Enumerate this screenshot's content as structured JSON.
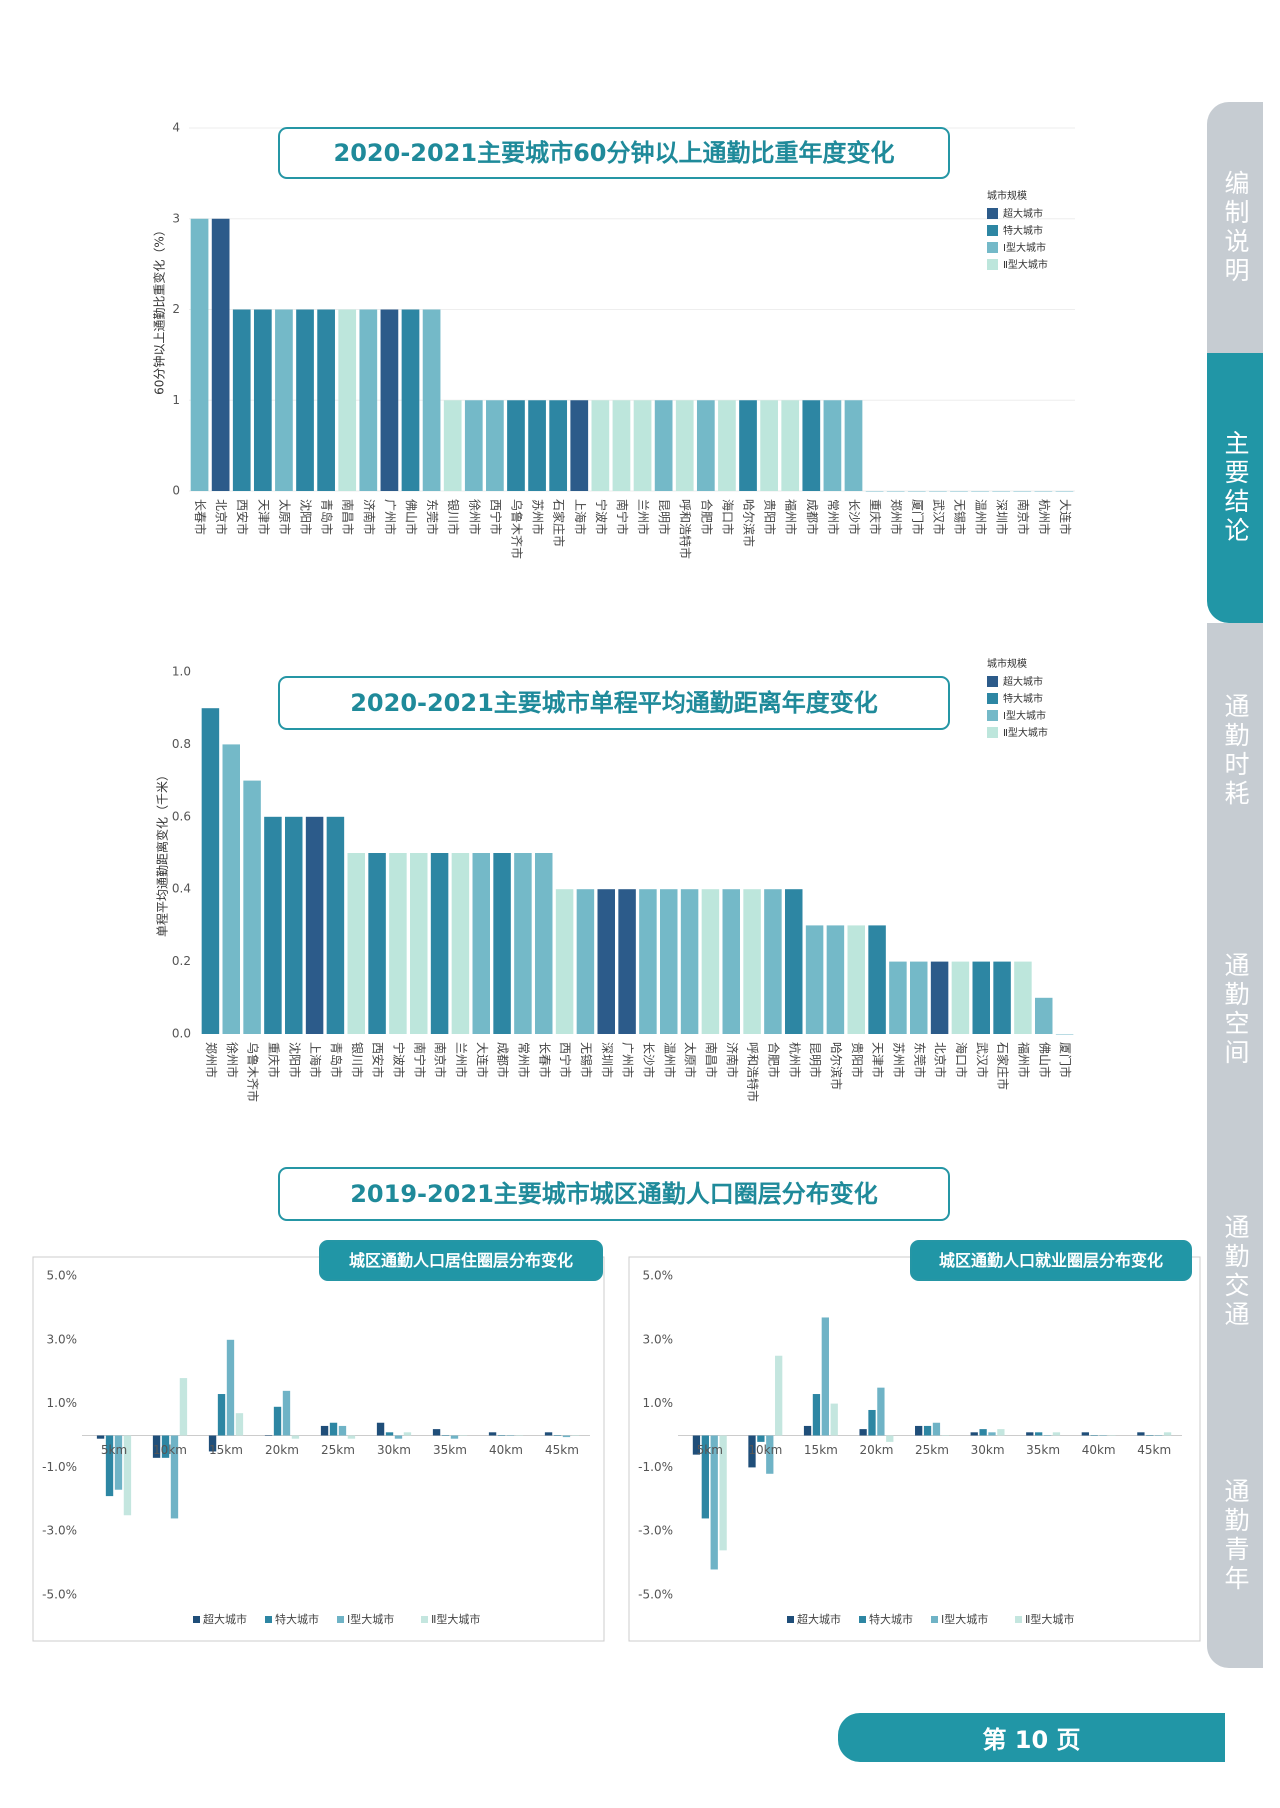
{
  "sidebar": [
    "编制说明",
    "主要结论",
    "通勤时耗",
    "通勤空间",
    "通勤交通",
    "通勤青年"
  ],
  "page_number": "第 10 页",
  "section_title": "2019-2021主要城市城区通勤人口圈层分布变化",
  "chart_data": [
    {
      "type": "bar",
      "title": "2020-2021主要城市60分钟以上通勤比重年度变化",
      "y_label": "60分钟以上通勤比重变化（%）",
      "legend_title": "城市规模",
      "legend": [
        {
          "name": "超大城市",
          "color": "#2c5b8a"
        },
        {
          "name": "特大城市",
          "color": "#2d86a3"
        },
        {
          "name": "Ⅰ型大城市",
          "color": "#74b9c8"
        },
        {
          "name": "Ⅱ型大城市",
          "color": "#bde6dc"
        }
      ],
      "categories": [
        "长春市",
        "北京市",
        "西安市",
        "天津市",
        "太原市",
        "沈阳市",
        "青岛市",
        "南昌市",
        "济南市",
        "广州市",
        "佛山市",
        "东莞市",
        "银川市",
        "徐州市",
        "西宁市",
        "乌鲁木齐市",
        "苏州市",
        "石家庄市",
        "上海市",
        "宁波市",
        "南宁市",
        "兰州市",
        "昆明市",
        "呼和浩特市",
        "合肥市",
        "海口市",
        "哈尔滨市",
        "贵阳市",
        "福州市",
        "成都市",
        "常州市",
        "长沙市",
        "重庆市",
        "郑州市",
        "厦门市",
        "武汉市",
        "无锡市",
        "温州市",
        "深圳市",
        "南京市",
        "杭州市",
        "大连市"
      ],
      "values": [
        3,
        3,
        2,
        2,
        2,
        2,
        2,
        2,
        2,
        2,
        2,
        2,
        1,
        1,
        1,
        1,
        1,
        1,
        1,
        1,
        1,
        1,
        1,
        1,
        1,
        1,
        1,
        1,
        1,
        1,
        1,
        1,
        0,
        0,
        0,
        0,
        0,
        0,
        0,
        0,
        0,
        0
      ],
      "colors": [
        "#74b9c8",
        "#2c5b8a",
        "#2d86a3",
        "#2d86a3",
        "#74b9c8",
        "#2d86a3",
        "#2d86a3",
        "#bde6dc",
        "#74b9c8",
        "#2c5b8a",
        "#2d86a3",
        "#74b9c8",
        "#bde6dc",
        "#74b9c8",
        "#74b9c8",
        "#2d86a3",
        "#2d86a3",
        "#2d86a3",
        "#2c5b8a",
        "#bde6dc",
        "#bde6dc",
        "#bde6dc",
        "#74b9c8",
        "#bde6dc",
        "#74b9c8",
        "#bde6dc",
        "#2d86a3",
        "#bde6dc",
        "#bde6dc",
        "#2d86a3",
        "#74b9c8",
        "#74b9c8",
        "#74b9c8",
        "#74b9c8",
        "#74b9c8",
        "#74b9c8",
        "#74b9c8",
        "#74b9c8",
        "#74b9c8",
        "#74b9c8",
        "#74b9c8",
        "#74b9c8"
      ],
      "ylim": [
        0,
        4
      ],
      "yticks": [
        0,
        1,
        2,
        3,
        4
      ],
      "grid": true
    },
    {
      "type": "bar",
      "title": "2020-2021主要城市单程平均通勤距离年度变化",
      "y_label": "单程平均通勤距离变化（千米）",
      "legend_title": "城市规模",
      "legend": [
        {
          "name": "超大城市",
          "color": "#2c5b8a"
        },
        {
          "name": "特大城市",
          "color": "#2d86a3"
        },
        {
          "name": "Ⅰ型大城市",
          "color": "#74b9c8"
        },
        {
          "name": "Ⅱ型大城市",
          "color": "#bde6dc"
        }
      ],
      "categories": [
        "郑州市",
        "徐州市",
        "乌鲁木齐市",
        "重庆市",
        "沈阳市",
        "上海市",
        "青岛市",
        "银川市",
        "西安市",
        "宁波市",
        "南宁市",
        "南京市",
        "兰州市",
        "大连市",
        "成都市",
        "常州市",
        "长春市",
        "西宁市",
        "无锡市",
        "深圳市",
        "广州市",
        "长沙市",
        "温州市",
        "太原市",
        "南昌市",
        "济南市",
        "呼和浩特市",
        "合肥市",
        "杭州市",
        "昆明市",
        "哈尔滨市",
        "贵阳市",
        "天津市",
        "苏州市",
        "东莞市",
        "北京市",
        "海口市",
        "武汉市",
        "石家庄市",
        "福州市",
        "佛山市",
        "厦门市"
      ],
      "values": [
        0.9,
        0.8,
        0.7,
        0.6,
        0.6,
        0.6,
        0.6,
        0.5,
        0.5,
        0.5,
        0.5,
        0.5,
        0.5,
        0.5,
        0.5,
        0.5,
        0.5,
        0.4,
        0.4,
        0.4,
        0.4,
        0.4,
        0.4,
        0.4,
        0.4,
        0.4,
        0.4,
        0.4,
        0.4,
        0.3,
        0.3,
        0.3,
        0.3,
        0.2,
        0.2,
        0.2,
        0.2,
        0.2,
        0.2,
        0.2,
        0.1,
        0
      ],
      "colors": [
        "#2d86a3",
        "#74b9c8",
        "#74b9c8",
        "#2d86a3",
        "#2d86a3",
        "#2c5b8a",
        "#2d86a3",
        "#bde6dc",
        "#2d86a3",
        "#bde6dc",
        "#bde6dc",
        "#2d86a3",
        "#bde6dc",
        "#74b9c8",
        "#2d86a3",
        "#74b9c8",
        "#74b9c8",
        "#bde6dc",
        "#74b9c8",
        "#2c5b8a",
        "#2c5b8a",
        "#74b9c8",
        "#74b9c8",
        "#74b9c8",
        "#bde6dc",
        "#74b9c8",
        "#bde6dc",
        "#74b9c8",
        "#2d86a3",
        "#74b9c8",
        "#74b9c8",
        "#bde6dc",
        "#2d86a3",
        "#74b9c8",
        "#74b9c8",
        "#2c5b8a",
        "#bde6dc",
        "#2d86a3",
        "#2d86a3",
        "#bde6dc",
        "#74b9c8",
        "#74b9c8"
      ],
      "ylim": [
        0,
        1
      ],
      "yticks": [
        {
          "value": 0,
          "label": "0.0"
        },
        0.2,
        0.4,
        0.6,
        0.8,
        {
          "value": 1,
          "label": "1.0"
        }
      ],
      "grid": false
    },
    {
      "type": "grouped_bar",
      "title": "城区通勤人口居住圈层分布变化",
      "categories": [
        "5km",
        "10km",
        "15km",
        "20km",
        "25km",
        "30km",
        "35km",
        "40km",
        "45km"
      ],
      "series": [
        {
          "name": "超大城市",
          "color": "#1f4e79",
          "values": [
            -0.1,
            -0.7,
            -0.5,
            0,
            0.3,
            0.4,
            0.2,
            0.1,
            0.1
          ]
        },
        {
          "name": "特大城市",
          "color": "#2d86a3",
          "values": [
            -1.9,
            -0.7,
            1.3,
            0.9,
            0.4,
            0.1,
            0,
            0,
            0
          ]
        },
        {
          "name": "Ⅰ型大城市",
          "color": "#6fb3c6",
          "values": [
            -1.7,
            -2.6,
            3.0,
            1.4,
            0.3,
            -0.1,
            -0.1,
            0,
            -0.05
          ]
        },
        {
          "name": "Ⅱ型大城市",
          "color": "#c4e6df",
          "values": [
            -2.5,
            1.8,
            0.7,
            -0.1,
            -0.1,
            0.1,
            0,
            0,
            0
          ]
        }
      ],
      "ylim": [
        -5,
        5
      ],
      "yticks": [
        {
          "value": 5,
          "label": "5.0%"
        },
        {
          "value": 3,
          "label": "3.0%"
        },
        {
          "value": 1,
          "label": "1.0%"
        },
        {
          "value": -1,
          "label": "-1.0%"
        },
        {
          "value": -3,
          "label": "-3.0%"
        },
        {
          "value": -5,
          "label": "-5.0%"
        }
      ],
      "grid": false
    },
    {
      "type": "grouped_bar",
      "title": "城区通勤人口就业圈层分布变化",
      "categories": [
        "5km",
        "10km",
        "15km",
        "20km",
        "25km",
        "30km",
        "35km",
        "40km",
        "45km"
      ],
      "series": [
        {
          "name": "超大城市",
          "color": "#1f4e79",
          "values": [
            -0.6,
            -1.0,
            0.3,
            0.2,
            0.3,
            0.1,
            0.1,
            0.1,
            0.1
          ]
        },
        {
          "name": "特大城市",
          "color": "#2d86a3",
          "values": [
            -2.6,
            -0.2,
            1.3,
            0.8,
            0.3,
            0.2,
            0.1,
            0,
            0
          ]
        },
        {
          "name": "Ⅰ型大城市",
          "color": "#6fb3c6",
          "values": [
            -4.2,
            -1.2,
            3.7,
            1.5,
            0.4,
            0.1,
            0,
            0,
            0
          ]
        },
        {
          "name": "Ⅱ型大城市",
          "color": "#c4e6df",
          "values": [
            -3.6,
            2.5,
            1.0,
            -0.2,
            0,
            0.2,
            0.1,
            0,
            0.1
          ]
        }
      ],
      "ylim": [
        -5,
        5
      ],
      "yticks": [
        {
          "value": 5,
          "label": "5.0%"
        },
        {
          "value": 3,
          "label": "3.0%"
        },
        {
          "value": 1,
          "label": "1.0%"
        },
        {
          "value": -1,
          "label": "-1.0%"
        },
        {
          "value": -3,
          "label": "-3.0%"
        },
        {
          "value": -5,
          "label": "-5.0%"
        }
      ],
      "grid": false
    }
  ]
}
